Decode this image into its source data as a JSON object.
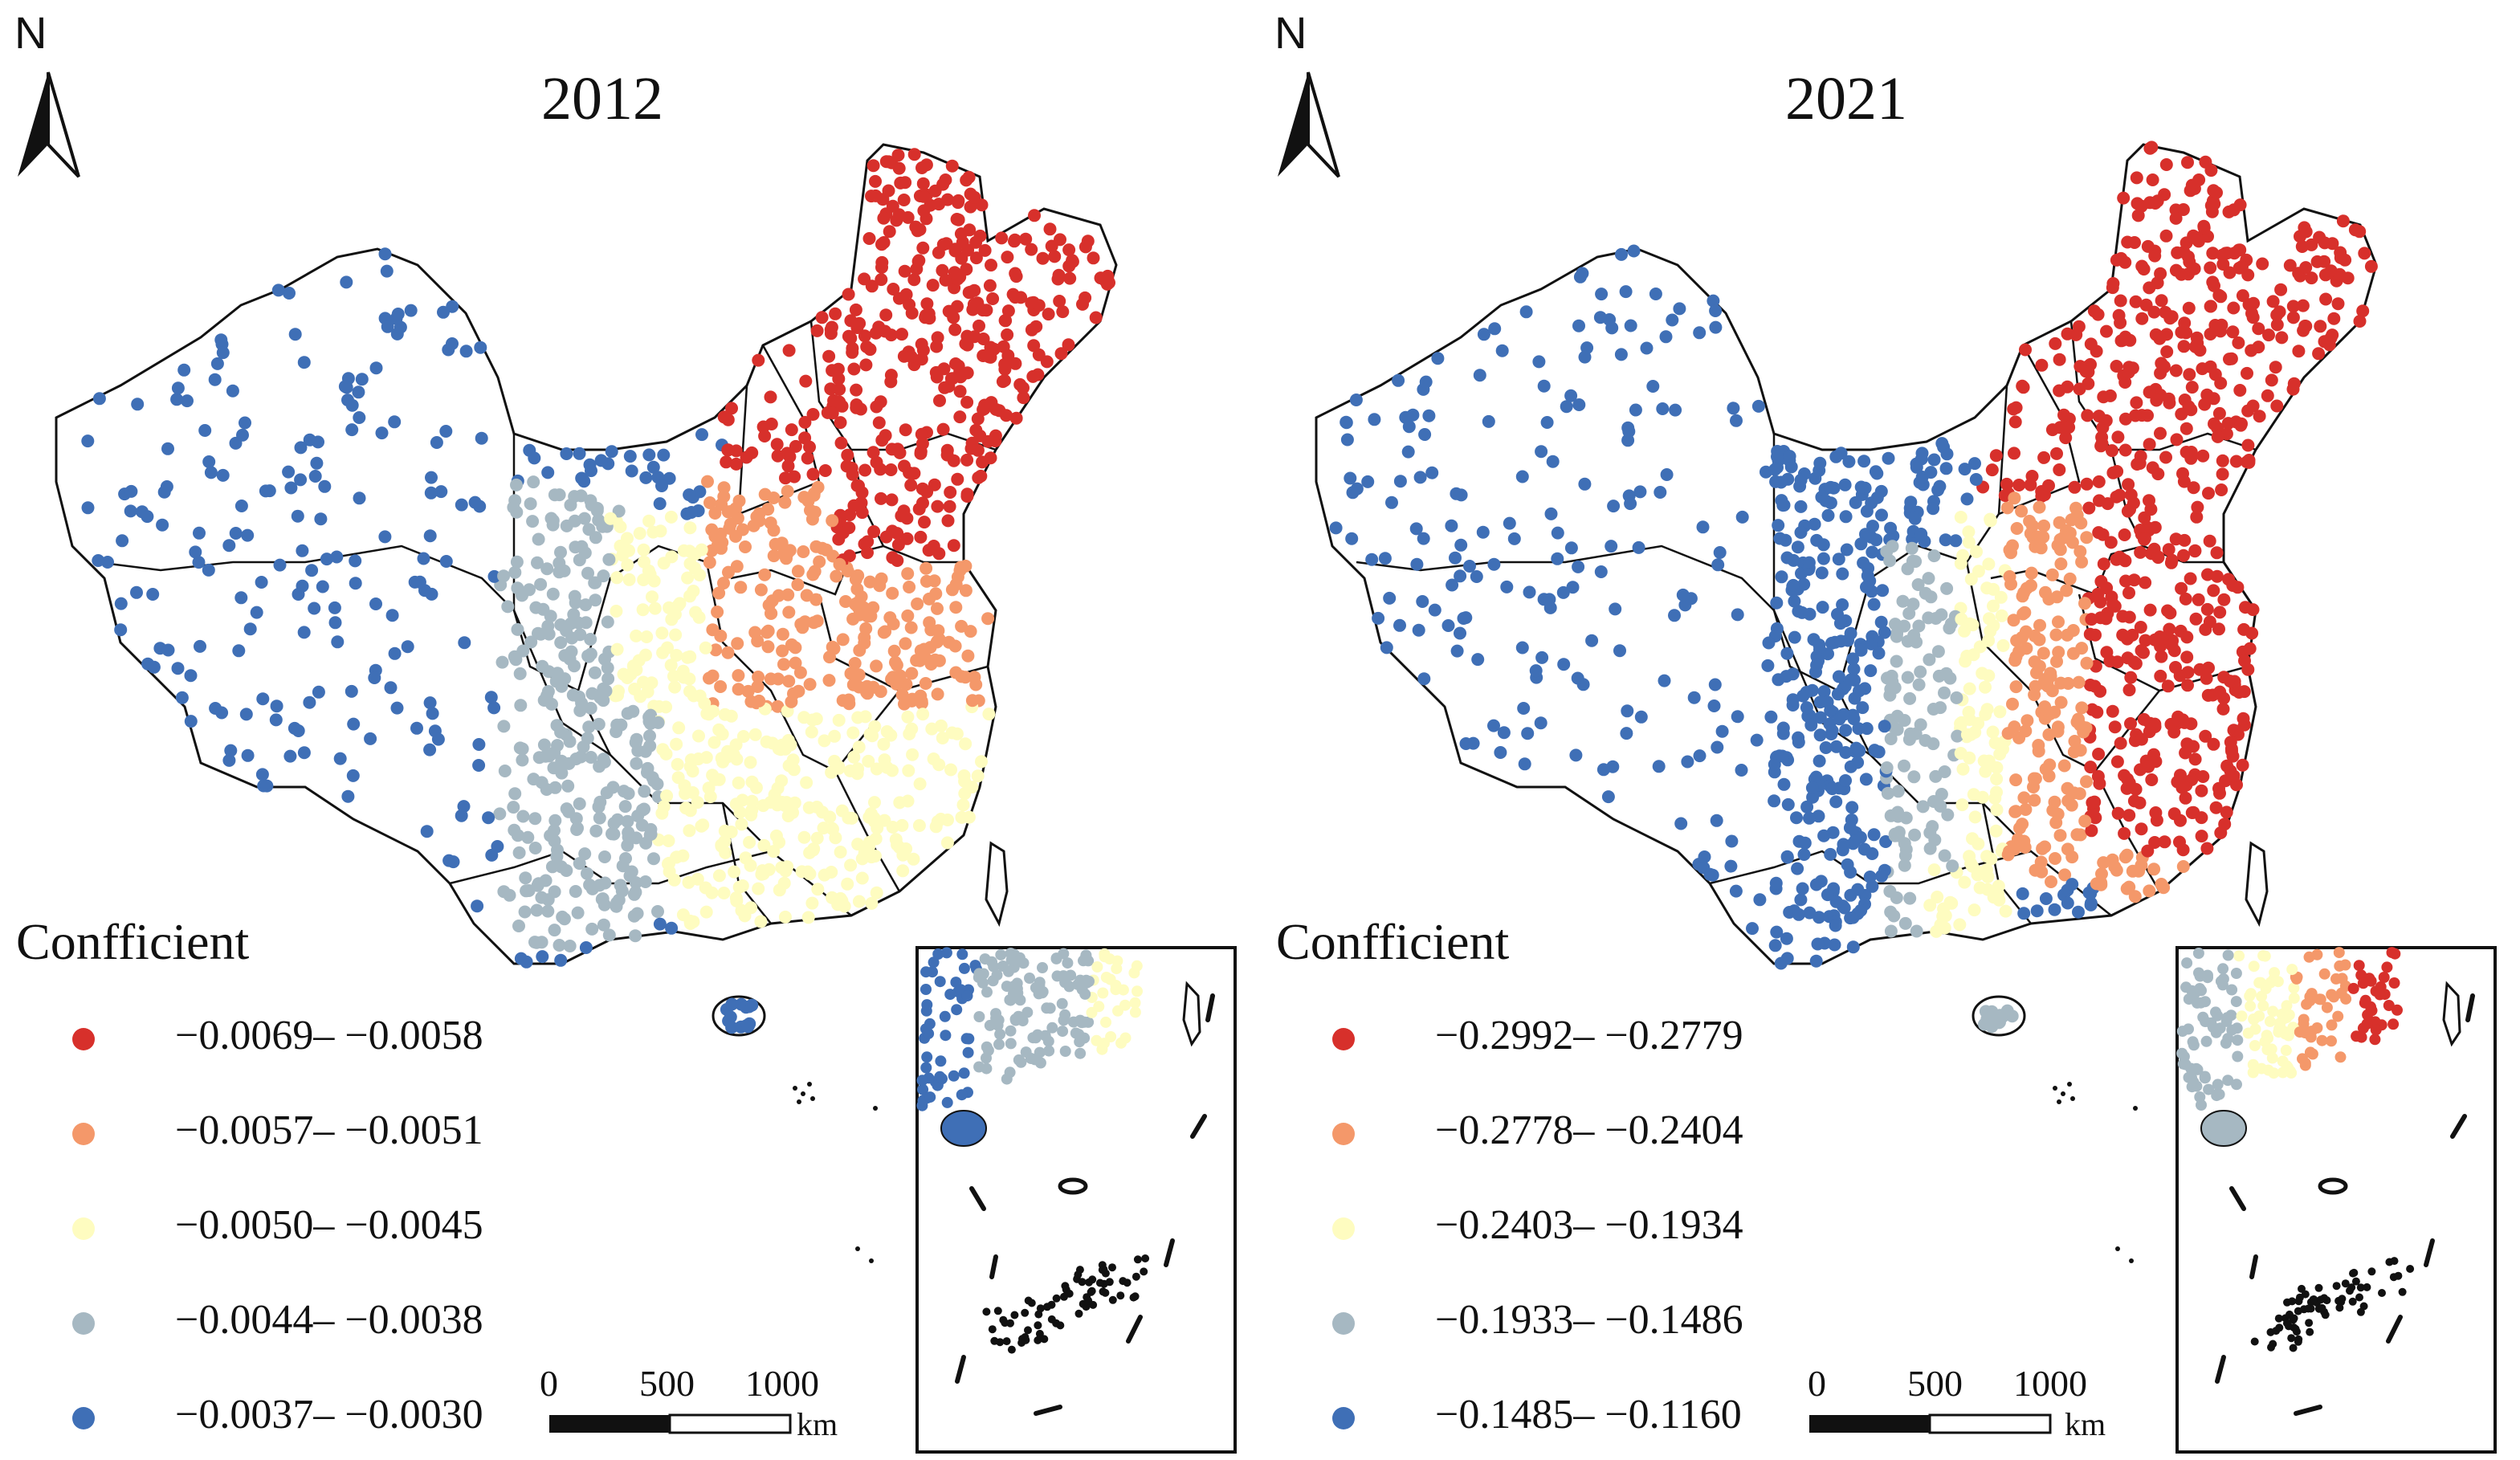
{
  "panels": [
    {
      "year": "2012",
      "north_label": "N",
      "legend_title": "Confficient",
      "legend": [
        {
          "label": "−0.0069– −0.0058",
          "color": "#d7302b"
        },
        {
          "label": "−0.0057– −0.0051",
          "color": "#f4986a"
        },
        {
          "label": "−0.0050– −0.0045",
          "color": "#fefcc0"
        },
        {
          "label": "−0.0044– −0.0038",
          "color": "#a6b8c2"
        },
        {
          "label": "−0.0037– −0.0030",
          "color": "#3f6fb6"
        }
      ],
      "scale": {
        "ticks": [
          "0",
          "500",
          "1000"
        ],
        "unit": "km"
      }
    },
    {
      "year": "2021",
      "north_label": "N",
      "legend_title": "Confficient",
      "legend": [
        {
          "label": "−0.2992– −0.2779",
          "color": "#d7302b"
        },
        {
          "label": "−0.2778– −0.2404",
          "color": "#f4986a"
        },
        {
          "label": "−0.2403– −0.1934",
          "color": "#fefcc0"
        },
        {
          "label": "−0.1933– −0.1486",
          "color": "#a6b8c2"
        },
        {
          "label": "−0.1485– −0.1160",
          "color": "#3f6fb6"
        }
      ],
      "scale": {
        "ticks": [
          "0",
          "500",
          "1000"
        ],
        "unit": "km"
      }
    }
  ]
}
